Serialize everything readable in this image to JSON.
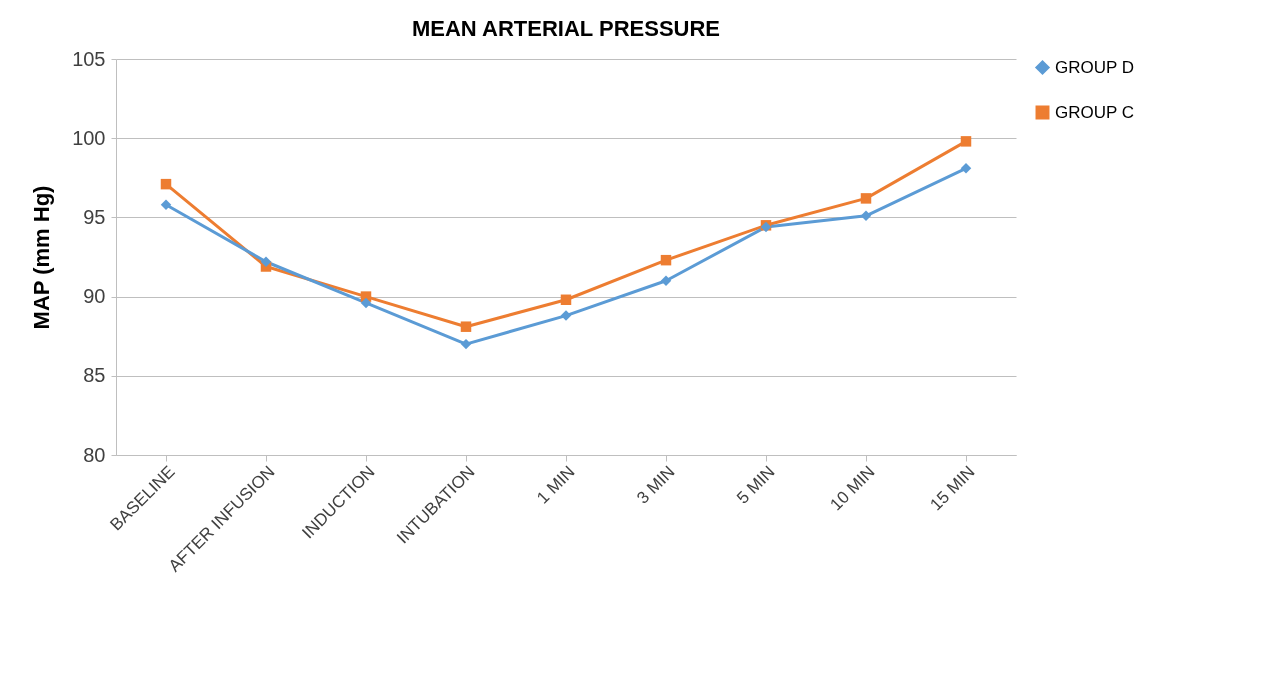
{
  "chart_data": {
    "type": "line",
    "title": "MEAN ARTERIAL PRESSURE",
    "ylabel": "MAP (mm Hg)",
    "categories": [
      "BASELINE",
      "AFTER INFUSION",
      "INDUCTION",
      "INTUBATION",
      "1 MIN",
      "3 MIN",
      "5 MIN",
      "10 MIN",
      "15 MIN"
    ],
    "series": [
      {
        "name": "GROUP D",
        "color": "#5b9bd5",
        "marker": "diamond",
        "values": [
          95.8,
          92.2,
          89.6,
          87.0,
          88.8,
          91.0,
          94.4,
          95.1,
          98.1
        ]
      },
      {
        "name": "GROUP C",
        "color": "#ed7d31",
        "marker": "square",
        "values": [
          97.1,
          91.9,
          90.0,
          88.1,
          89.8,
          92.3,
          94.5,
          96.2,
          99.8
        ]
      }
    ],
    "ylim": [
      80,
      105
    ],
    "yticks": [
      80,
      85,
      90,
      95,
      100,
      105
    ],
    "grid": "y",
    "legend": "right"
  }
}
